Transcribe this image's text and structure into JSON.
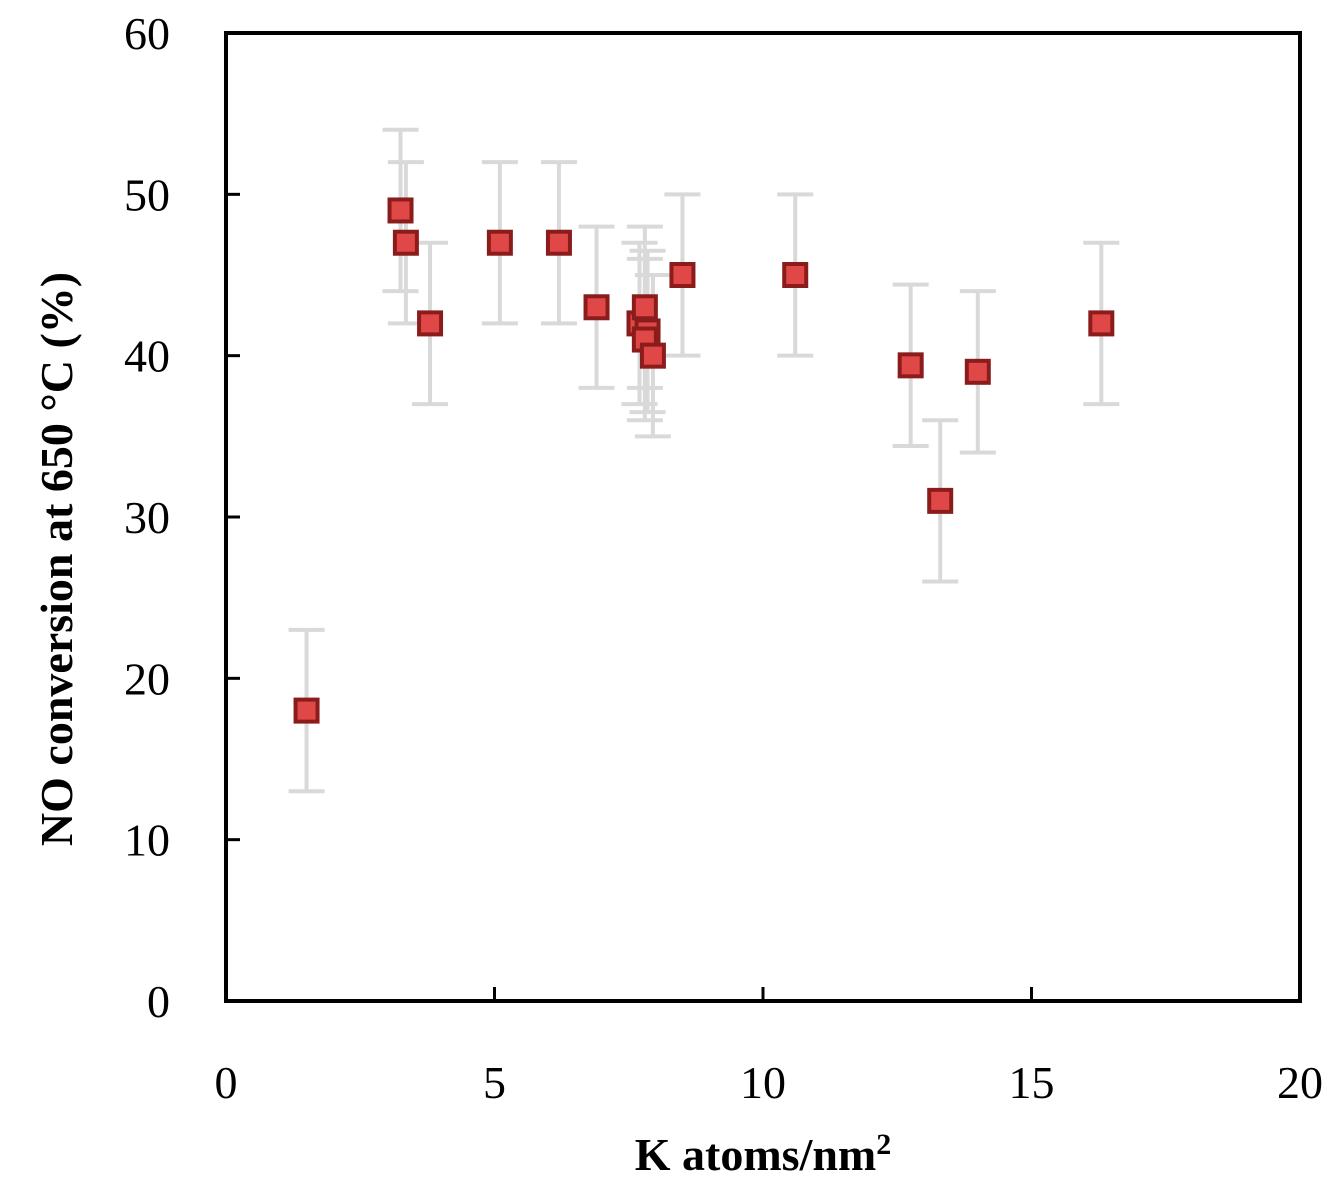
{
  "chart_data": {
    "type": "scatter",
    "title": "",
    "xlabel": "K atoms/nm",
    "xlabel_superscript": "2",
    "ylabel": "NO conversion at 650 °C (%)",
    "xlim": [
      0,
      20
    ],
    "ylim": [
      0,
      60
    ],
    "x_ticks": [
      0,
      5,
      10,
      15,
      20
    ],
    "y_ticks": [
      0,
      10,
      20,
      30,
      40,
      50,
      60
    ],
    "grid": false,
    "legend": "none",
    "marker": "square",
    "colors": {
      "marker_fill": "#e04848",
      "marker_edge": "#8b1c1c",
      "error_bar": "#d9d9d9",
      "axis": "#000000"
    },
    "points": [
      {
        "x": 1.5,
        "y": 18,
        "err": 5
      },
      {
        "x": 3.25,
        "y": 49,
        "err": 5
      },
      {
        "x": 3.35,
        "y": 47,
        "err": 5
      },
      {
        "x": 3.8,
        "y": 42,
        "err": 5
      },
      {
        "x": 5.1,
        "y": 47,
        "err": 5
      },
      {
        "x": 6.2,
        "y": 47,
        "err": 5
      },
      {
        "x": 6.9,
        "y": 43,
        "err": 5
      },
      {
        "x": 7.7,
        "y": 42,
        "err": 5
      },
      {
        "x": 7.8,
        "y": 43,
        "err": 5
      },
      {
        "x": 7.85,
        "y": 41.5,
        "err": 5
      },
      {
        "x": 7.8,
        "y": 41,
        "err": 5
      },
      {
        "x": 7.95,
        "y": 40,
        "err": 5
      },
      {
        "x": 8.5,
        "y": 45,
        "err": 5
      },
      {
        "x": 10.6,
        "y": 45,
        "err": 5
      },
      {
        "x": 12.75,
        "y": 39.4,
        "err": 5
      },
      {
        "x": 13.3,
        "y": 31,
        "err": 5
      },
      {
        "x": 14.0,
        "y": 39,
        "err": 5
      },
      {
        "x": 16.3,
        "y": 42,
        "err": 5
      }
    ]
  }
}
